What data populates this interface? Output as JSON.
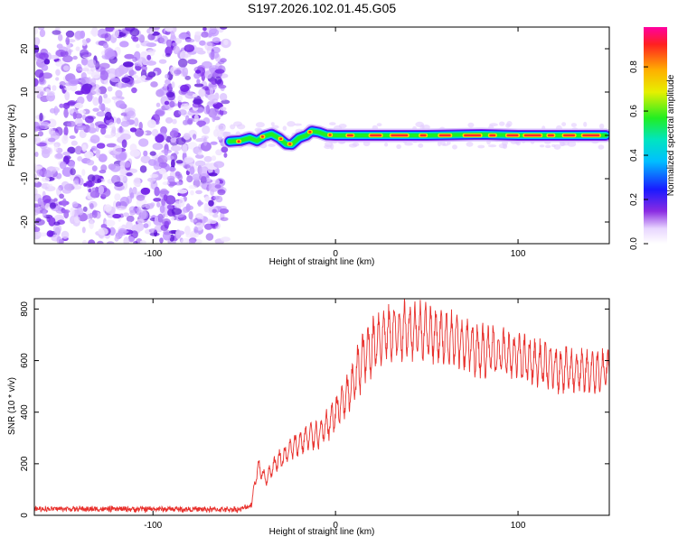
{
  "title": "S197.2026.102.01.45.G05",
  "chart_data": [
    {
      "type": "heatmap",
      "id": "spectrogram",
      "xlabel": "Height of straight line (km)",
      "ylabel": "Frequency (Hz)",
      "xlim": [
        -165,
        150
      ],
      "ylim": [
        -25,
        25
      ],
      "x_ticks": [
        -100,
        0,
        100
      ],
      "y_ticks": [
        -20,
        -10,
        0,
        10,
        20
      ],
      "grid": false,
      "noise_region_x": [
        -165,
        -60
      ],
      "signal_track": [
        [
          -58,
          -1.4
        ],
        [
          -52,
          -1.2
        ],
        [
          -47,
          -0.6
        ],
        [
          -43,
          -1.3
        ],
        [
          -39,
          -0.2
        ],
        [
          -35,
          0.3
        ],
        [
          -31,
          -0.6
        ],
        [
          -27,
          -2.0
        ],
        [
          -24,
          -2.1
        ],
        [
          -20,
          -0.6
        ],
        [
          -16,
          0.0
        ],
        [
          -13,
          1.0
        ],
        [
          -9,
          0.7
        ],
        [
          -5,
          0.1
        ],
        [
          0,
          0.0
        ],
        [
          20,
          0.0
        ],
        [
          50,
          0.0
        ],
        [
          80,
          0.2
        ],
        [
          100,
          0.0
        ],
        [
          120,
          0.0
        ],
        [
          140,
          0.0
        ],
        [
          148,
          0.0
        ]
      ],
      "colorbar": {
        "label": "Normalized spectral amplitude",
        "ticks": [
          "0.0",
          "0.2",
          "0.4",
          "0.6",
          "0.8"
        ],
        "range": [
          0,
          0.98
        ]
      }
    },
    {
      "type": "line",
      "id": "snr",
      "xlabel": "Height of straight line (km)",
      "ylabel": "SNR (10 * v/v)",
      "xlim": [
        -165,
        150
      ],
      "ylim": [
        0,
        840
      ],
      "x_ticks": [
        -100,
        0,
        100
      ],
      "y_ticks": [
        0,
        200,
        400,
        600,
        800
      ],
      "series": [
        {
          "name": "SNR",
          "color": "#e8302c",
          "x": [
            -165,
            -150,
            -130,
            -110,
            -90,
            -70,
            -52,
            -46,
            -44,
            -42,
            -40,
            -38,
            -35,
            -32,
            -28,
            -24,
            -20,
            -16,
            -12,
            -8,
            -4,
            0,
            4,
            8,
            12,
            16,
            20,
            24,
            28,
            32,
            36,
            40,
            45,
            50,
            55,
            60,
            65,
            70,
            75,
            80,
            85,
            90,
            95,
            100,
            105,
            110,
            115,
            120,
            125,
            130,
            135,
            140,
            145,
            150
          ],
          "values": [
            25,
            25,
            24,
            24,
            24,
            23,
            23,
            40,
            140,
            190,
            160,
            140,
            180,
            210,
            230,
            260,
            280,
            300,
            310,
            320,
            350,
            400,
            440,
            480,
            560,
            620,
            660,
            690,
            700,
            710,
            715,
            720,
            720,
            715,
            700,
            690,
            680,
            665,
            650,
            640,
            640,
            630,
            620,
            615,
            600,
            590,
            580,
            570,
            565,
            560,
            555,
            555,
            555,
            560
          ]
        }
      ]
    }
  ]
}
